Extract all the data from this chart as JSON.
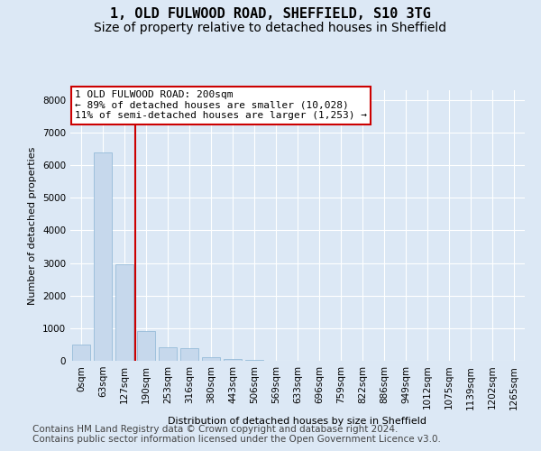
{
  "title_line1": "1, OLD FULWOOD ROAD, SHEFFIELD, S10 3TG",
  "title_line2": "Size of property relative to detached houses in Sheffield",
  "xlabel": "Distribution of detached houses by size in Sheffield",
  "ylabel": "Number of detached properties",
  "categories": [
    "0sqm",
    "63sqm",
    "127sqm",
    "190sqm",
    "253sqm",
    "316sqm",
    "380sqm",
    "443sqm",
    "506sqm",
    "569sqm",
    "633sqm",
    "696sqm",
    "759sqm",
    "822sqm",
    "886sqm",
    "949sqm",
    "1012sqm",
    "1075sqm",
    "1139sqm",
    "1202sqm",
    "1265sqm"
  ],
  "values": [
    500,
    6400,
    2950,
    900,
    420,
    380,
    120,
    55,
    20,
    0,
    0,
    0,
    0,
    0,
    0,
    0,
    0,
    0,
    0,
    0,
    0
  ],
  "bar_color": "#c6d8ec",
  "bar_edge_color": "#8ab4d4",
  "vline_color": "#cc0000",
  "vline_x": 2.5,
  "annotation_text": "1 OLD FULWOOD ROAD: 200sqm\n← 89% of detached houses are smaller (10,028)\n11% of semi-detached houses are larger (1,253) →",
  "annotation_box_facecolor": "#ffffff",
  "annotation_box_edgecolor": "#cc0000",
  "ylim": [
    0,
    8300
  ],
  "yticks": [
    0,
    1000,
    2000,
    3000,
    4000,
    5000,
    6000,
    7000,
    8000
  ],
  "background_color": "#dce8f5",
  "grid_color": "#ffffff",
  "title_fontsize": 11,
  "subtitle_fontsize": 10,
  "axis_label_fontsize": 8,
  "tick_fontsize": 7.5,
  "footnote_fontsize": 7.5,
  "footnote_line1": "Contains HM Land Registry data © Crown copyright and database right 2024.",
  "footnote_line2": "Contains public sector information licensed under the Open Government Licence v3.0."
}
